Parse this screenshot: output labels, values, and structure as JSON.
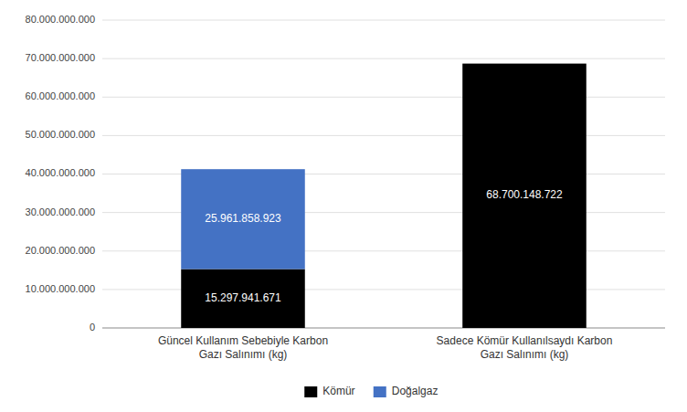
{
  "chart_data": {
    "type": "bar",
    "stacked": true,
    "categories": [
      "Güncel Kullanım Sebebiyle Karbon\nGazı Salınımı (kg)",
      "Sadece Kömür Kullanılsaydı Karbon\nGazı Salınımı (kg)"
    ],
    "series": [
      {
        "name": "Kömür",
        "color": "#000000",
        "values": [
          15297941671,
          68700148722
        ],
        "value_labels": [
          "15.297.941.671",
          "68.700.148.722"
        ]
      },
      {
        "name": "Doğalgaz",
        "color": "#4472C4",
        "values": [
          25961858923,
          0
        ],
        "value_labels": [
          "25.961.858.923",
          null
        ]
      }
    ],
    "ylim": [
      0,
      80000000000
    ],
    "yticks": [
      0,
      {
        "value": 10000000000,
        "label": "10.000.000.000"
      },
      {
        "value": 20000000000,
        "label": "20.000.000.000"
      },
      {
        "value": 30000000000,
        "label": "30.000.000.000"
      },
      {
        "value": 40000000000,
        "label": "40.000.000.000"
      },
      {
        "value": 50000000000,
        "label": "50.000.000.000"
      },
      {
        "value": 60000000000,
        "label": "60.000.000.000"
      },
      {
        "value": 70000000000,
        "label": "70.000.000.000"
      },
      {
        "value": 80000000000,
        "label": "80.000.000.000"
      }
    ],
    "grid": true,
    "legend": "bottom",
    "data_labels": true
  }
}
